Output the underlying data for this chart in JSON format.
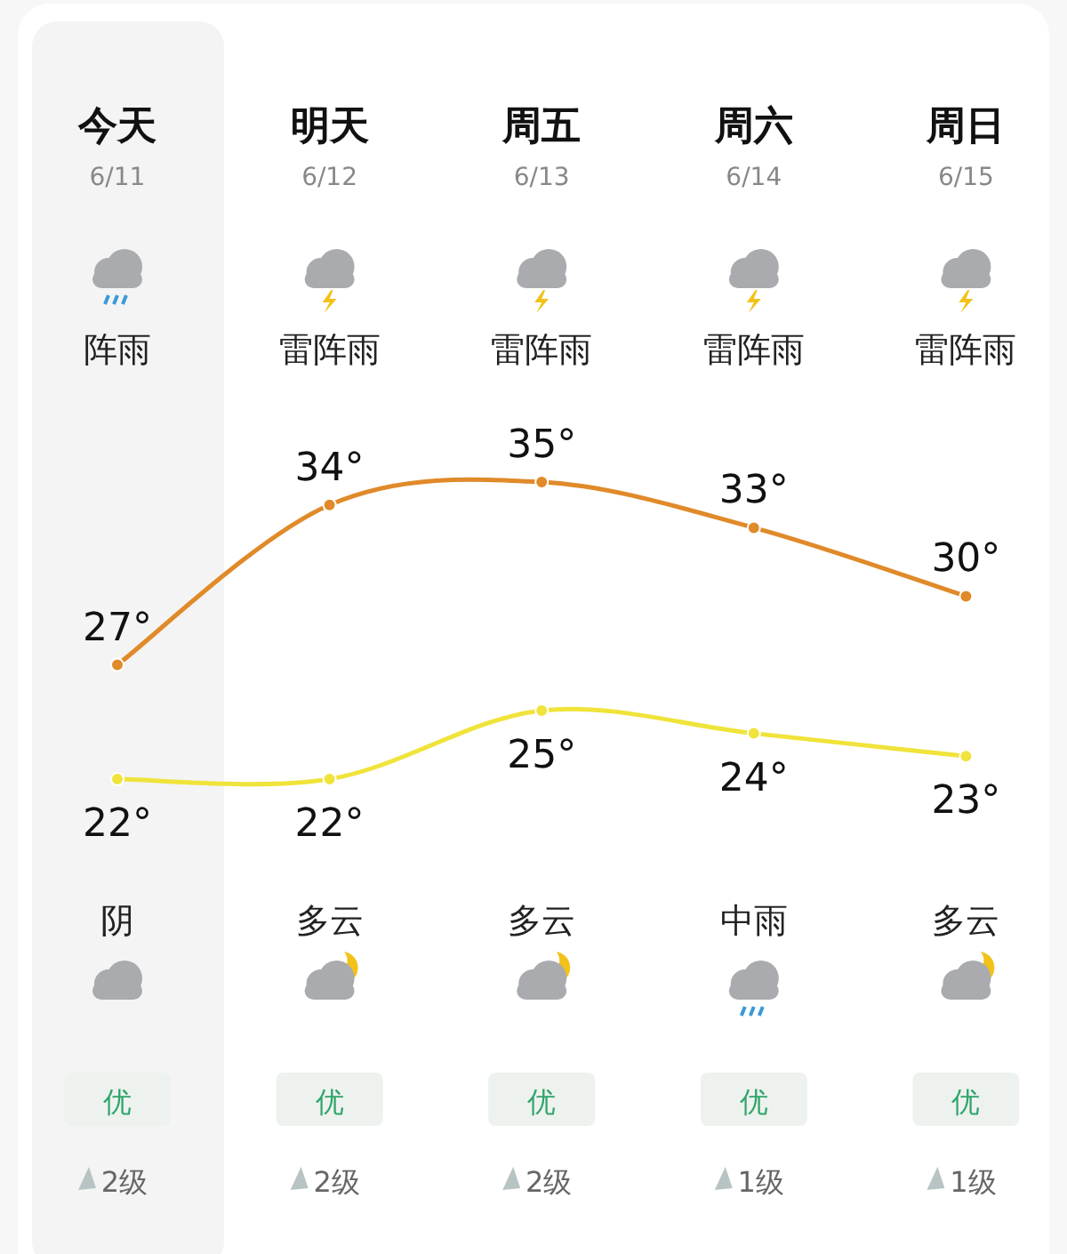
{
  "chart_data": {
    "type": "line",
    "categories": [
      "今天",
      "明天",
      "周五",
      "周六",
      "周日"
    ],
    "series": [
      {
        "color": "#e08a2a",
        "values": [
          27,
          34,
          35,
          33,
          30
        ],
        "value_labels": [
          "27°",
          "34°",
          "35°",
          "33°",
          "30°"
        ]
      },
      {
        "color": "#f0e33a",
        "values": [
          22,
          22,
          25,
          24,
          23
        ],
        "value_labels": [
          "22°",
          "22°",
          "25°",
          "24°",
          "23°"
        ]
      }
    ],
    "marker": "circle",
    "bands": [
      {
        "axis": "x",
        "from": "今天",
        "to": "今天",
        "color": "#f4f4f4"
      }
    ],
    "annotations": [
      "6/11",
      "6/12",
      "6/13",
      "6/14",
      "6/15",
      "阵雨",
      "雷阵雨",
      "雷阵雨",
      "雷阵雨",
      "雷阵雨",
      "阴",
      "多云",
      "多云",
      "中雨",
      "多云",
      "优",
      "优",
      "优",
      "优",
      "优",
      "2级",
      "2级",
      "2级",
      "1级",
      "1级"
    ]
  }
}
